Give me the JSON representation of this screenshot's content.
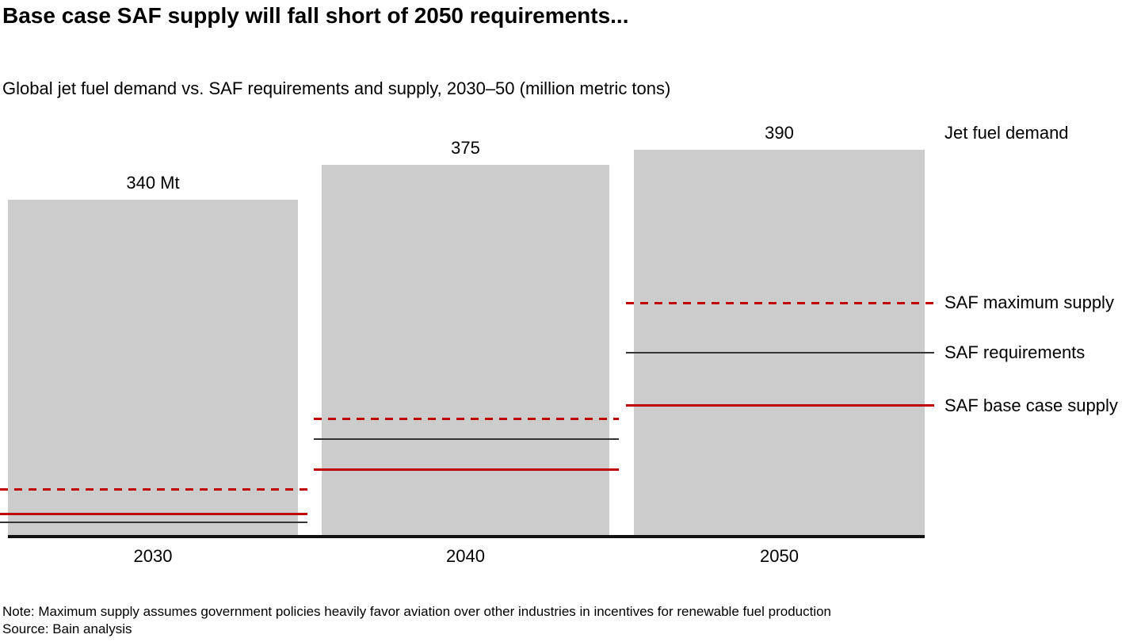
{
  "header": {
    "title": "Base case SAF supply will fall short of 2050 requirements...",
    "subtitle": "Global jet fuel demand vs. SAF requirements and supply, 2030–50 (million metric tons)"
  },
  "legend": {
    "demand": "Jet fuel demand",
    "max_supply": "SAF maximum supply",
    "requirements": "SAF requirements",
    "base_supply": "SAF base case supply"
  },
  "footer": {
    "note": "Note: Maximum supply assumes government policies heavily favor aviation over other industries in incentives for renewable fuel production",
    "source": "Source: Bain analysis"
  },
  "colors": {
    "bar_gray": "#cccccc",
    "line_red": "#c00000",
    "line_dark": "#333333",
    "axis_black": "#111111"
  },
  "chart_data": {
    "type": "bar",
    "title": "Global jet fuel demand vs. SAF requirements and supply, 2030–50",
    "unit": "million metric tons",
    "categories": [
      "2030",
      "2040",
      "2050"
    ],
    "series": [
      {
        "name": "Jet fuel demand",
        "style": "bar",
        "values": [
          340,
          375,
          390
        ],
        "labels": [
          "340 Mt",
          "375",
          "390"
        ]
      },
      {
        "name": "SAF maximum supply",
        "style": "dashed-red-line",
        "values": [
          46,
          118,
          235
        ]
      },
      {
        "name": "SAF requirements",
        "style": "solid-black-line",
        "values": [
          13,
          97,
          185
        ]
      },
      {
        "name": "SAF base case supply",
        "style": "solid-red-line",
        "values": [
          21,
          66,
          131
        ]
      }
    ],
    "ylim": [
      0,
      420
    ],
    "grid": false,
    "legend_position": "right"
  }
}
